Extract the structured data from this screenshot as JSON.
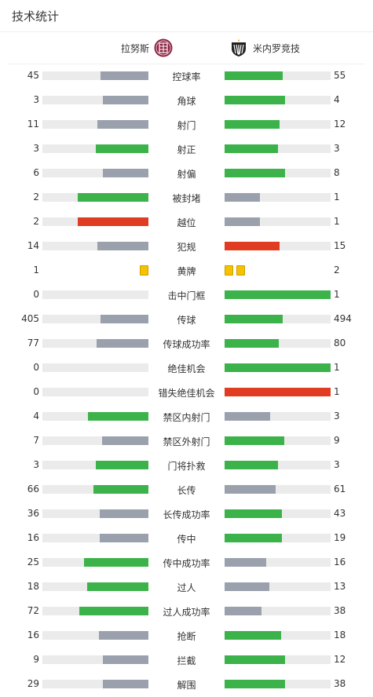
{
  "header": {
    "title": "技术统计"
  },
  "teams": {
    "home": {
      "name": "拉努斯",
      "logo_icon": "lanus-crest-icon",
      "logo_color": "#8b2240"
    },
    "away": {
      "name": "米内罗竞技",
      "logo_icon": "atletico-mineiro-crest-icon",
      "logo_color": "#222222"
    }
  },
  "colors": {
    "green": "#3cb34a",
    "gray": "#9aa1ad",
    "red": "#e03c22",
    "track": "#ebebeb"
  },
  "stats": [
    {
      "label": "控球率",
      "home": "45",
      "away": "55",
      "home_fill": 0.45,
      "away_fill": 0.55,
      "home_color": "gray",
      "away_color": "green"
    },
    {
      "label": "角球",
      "home": "3",
      "away": "4",
      "home_fill": 0.43,
      "away_fill": 0.57,
      "home_color": "gray",
      "away_color": "green"
    },
    {
      "label": "射门",
      "home": "11",
      "away": "12",
      "home_fill": 0.48,
      "away_fill": 0.52,
      "home_color": "gray",
      "away_color": "green"
    },
    {
      "label": "射正",
      "home": "3",
      "away": "3",
      "home_fill": 0.5,
      "away_fill": 0.5,
      "home_color": "green",
      "away_color": "green"
    },
    {
      "label": "射偏",
      "home": "6",
      "away": "8",
      "home_fill": 0.43,
      "away_fill": 0.57,
      "home_color": "gray",
      "away_color": "green"
    },
    {
      "label": "被封堵",
      "home": "2",
      "away": "1",
      "home_fill": 0.67,
      "away_fill": 0.33,
      "home_color": "green",
      "away_color": "gray"
    },
    {
      "label": "越位",
      "home": "2",
      "away": "1",
      "home_fill": 0.67,
      "away_fill": 0.33,
      "home_color": "red",
      "away_color": "gray"
    },
    {
      "label": "犯规",
      "home": "14",
      "away": "15",
      "home_fill": 0.48,
      "away_fill": 0.52,
      "home_color": "gray",
      "away_color": "red"
    },
    {
      "label": "黄牌",
      "home": "1",
      "away": "2",
      "type": "cards"
    },
    {
      "label": "击中门框",
      "home": "0",
      "away": "1",
      "home_fill": 0,
      "away_fill": 1,
      "home_color": "gray",
      "away_color": "green"
    },
    {
      "label": "传球",
      "home": "405",
      "away": "494",
      "home_fill": 0.45,
      "away_fill": 0.55,
      "home_color": "gray",
      "away_color": "green"
    },
    {
      "label": "传球成功率",
      "home": "77",
      "away": "80",
      "home_fill": 0.49,
      "away_fill": 0.51,
      "home_color": "gray",
      "away_color": "green"
    },
    {
      "label": "绝佳机会",
      "home": "0",
      "away": "1",
      "home_fill": 0,
      "away_fill": 1,
      "home_color": "gray",
      "away_color": "green"
    },
    {
      "label": "错失绝佳机会",
      "home": "0",
      "away": "1",
      "home_fill": 0,
      "away_fill": 1,
      "home_color": "gray",
      "away_color": "red"
    },
    {
      "label": "禁区内射门",
      "home": "4",
      "away": "3",
      "home_fill": 0.57,
      "away_fill": 0.43,
      "home_color": "green",
      "away_color": "gray"
    },
    {
      "label": "禁区外射门",
      "home": "7",
      "away": "9",
      "home_fill": 0.44,
      "away_fill": 0.56,
      "home_color": "gray",
      "away_color": "green"
    },
    {
      "label": "门将扑救",
      "home": "3",
      "away": "3",
      "home_fill": 0.5,
      "away_fill": 0.5,
      "home_color": "green",
      "away_color": "green"
    },
    {
      "label": "长传",
      "home": "66",
      "away": "61",
      "home_fill": 0.52,
      "away_fill": 0.48,
      "home_color": "green",
      "away_color": "gray"
    },
    {
      "label": "长传成功率",
      "home": "36",
      "away": "43",
      "home_fill": 0.46,
      "away_fill": 0.54,
      "home_color": "gray",
      "away_color": "green"
    },
    {
      "label": "传中",
      "home": "16",
      "away": "19",
      "home_fill": 0.46,
      "away_fill": 0.54,
      "home_color": "gray",
      "away_color": "green"
    },
    {
      "label": "传中成功率",
      "home": "25",
      "away": "16",
      "home_fill": 0.61,
      "away_fill": 0.39,
      "home_color": "green",
      "away_color": "gray"
    },
    {
      "label": "过人",
      "home": "18",
      "away": "13",
      "home_fill": 0.58,
      "away_fill": 0.42,
      "home_color": "green",
      "away_color": "gray"
    },
    {
      "label": "过人成功率",
      "home": "72",
      "away": "38",
      "home_fill": 0.65,
      "away_fill": 0.35,
      "home_color": "green",
      "away_color": "gray"
    },
    {
      "label": "抢断",
      "home": "16",
      "away": "18",
      "home_fill": 0.47,
      "away_fill": 0.53,
      "home_color": "gray",
      "away_color": "green"
    },
    {
      "label": "拦截",
      "home": "9",
      "away": "12",
      "home_fill": 0.43,
      "away_fill": 0.57,
      "home_color": "gray",
      "away_color": "green"
    },
    {
      "label": "解围",
      "home": "29",
      "away": "38",
      "home_fill": 0.43,
      "away_fill": 0.57,
      "home_color": "gray",
      "away_color": "green"
    }
  ]
}
